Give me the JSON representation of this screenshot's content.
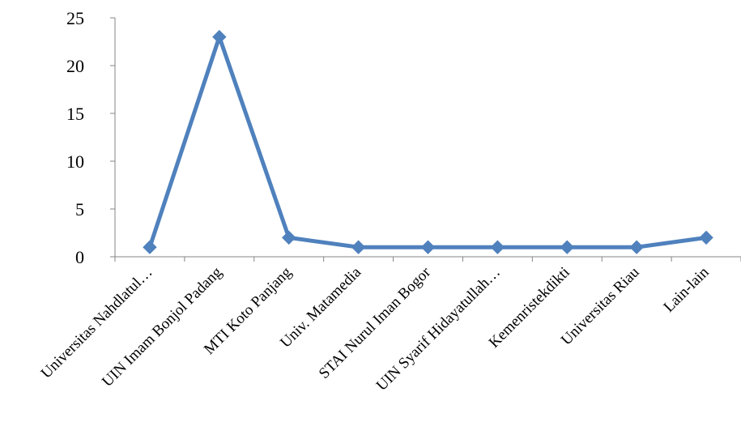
{
  "chart_data": {
    "type": "line",
    "categories": [
      "Universitas Nahdlatul…",
      "UIN Imam Bonjol Padang",
      "MTI Koto Panjang",
      "Univ. Matamedia",
      "STAI Nurul Iman Bogor",
      "UIN Syarif Hidayatullah…",
      "Kemenristekdikti",
      "Universitas Riau",
      "Lain-lain"
    ],
    "series": [
      {
        "values": [
          1,
          23,
          2,
          1,
          1,
          1,
          1,
          1,
          2
        ],
        "color": "#4f81bd",
        "marker": "diamond"
      }
    ],
    "ylim": [
      0,
      25
    ],
    "yticks": [
      "0",
      "5",
      "10",
      "15",
      "20",
      "25"
    ],
    "title": "",
    "xlabel": "",
    "ylabel": "",
    "grid": false,
    "legend": "none"
  }
}
